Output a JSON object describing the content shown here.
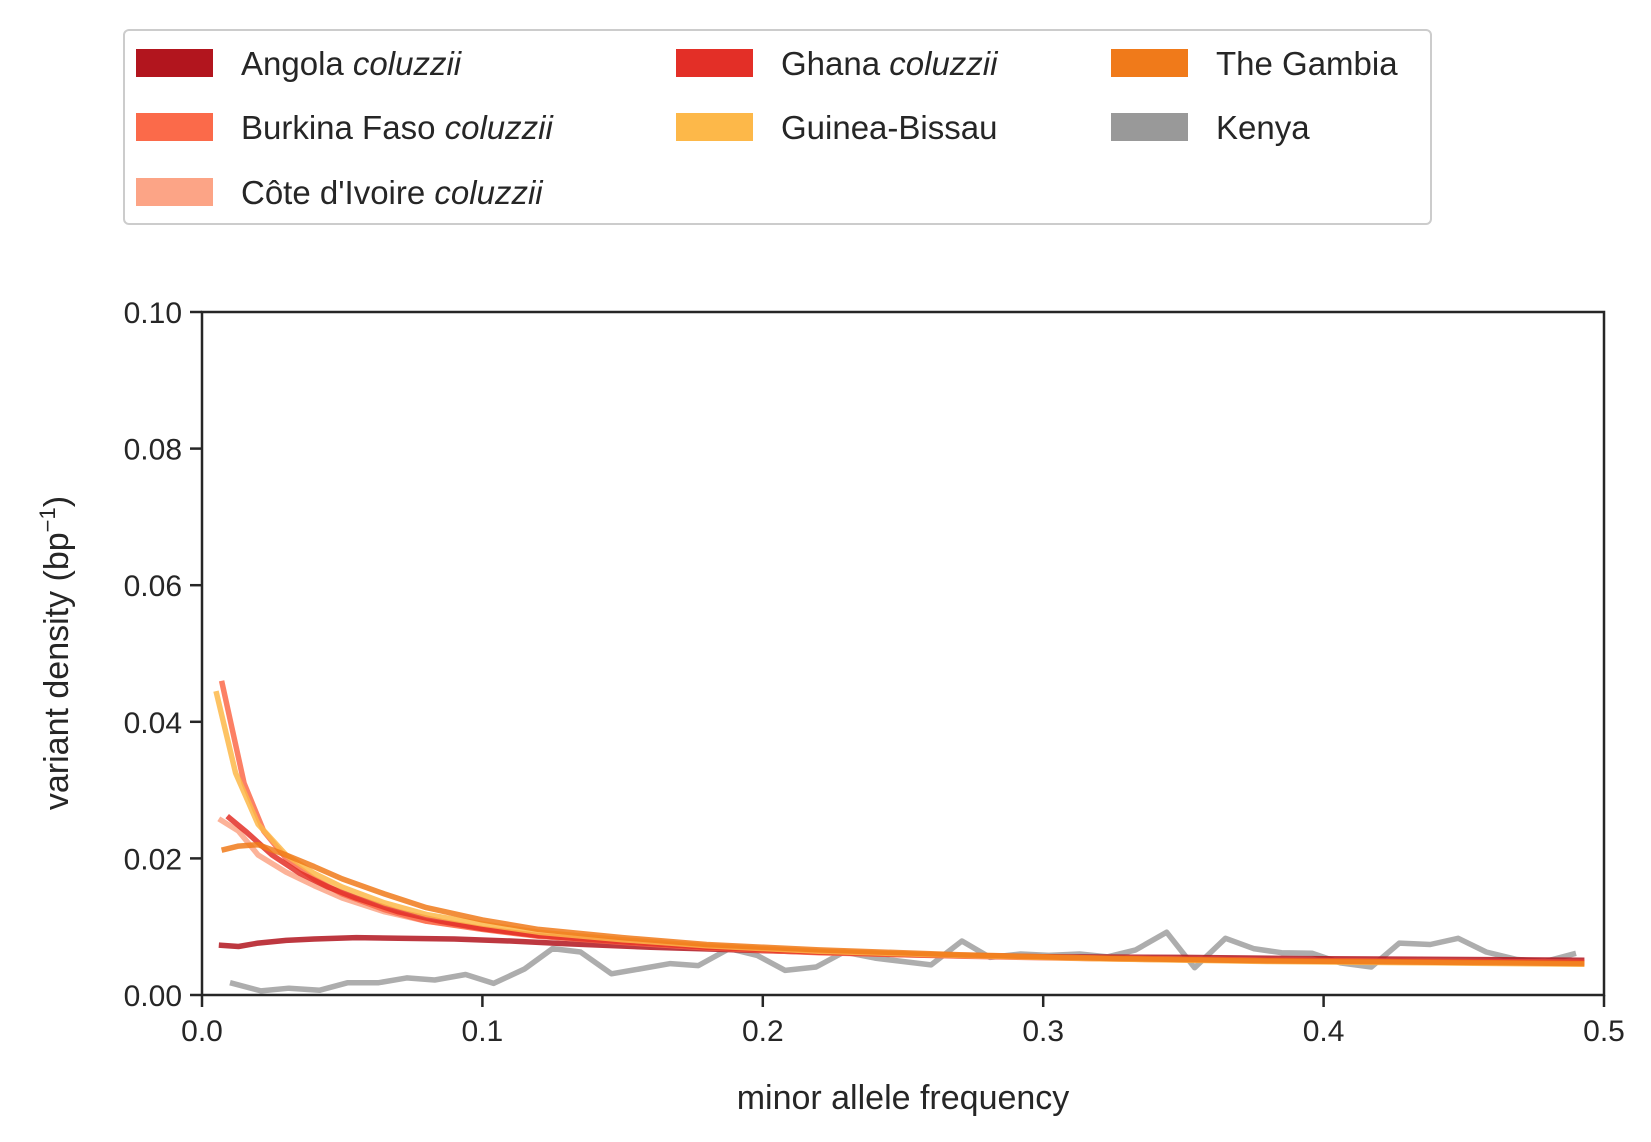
{
  "chart_data": {
    "type": "line",
    "title": "",
    "xlabel": "minor allele frequency",
    "ylabel": "variant density (bp",
    "ylabel_sup": "−1",
    "ylabel_close": ")",
    "xlim": [
      0,
      0.5
    ],
    "ylim": [
      0,
      0.1
    ],
    "xticks": [
      0.0,
      0.1,
      0.2,
      0.3,
      0.4,
      0.5
    ],
    "xtick_labels": [
      "0.0",
      "0.1",
      "0.2",
      "0.3",
      "0.4",
      "0.5"
    ],
    "yticks": [
      0.0,
      0.02,
      0.04,
      0.06,
      0.08,
      0.1
    ],
    "ytick_labels": [
      "0.00",
      "0.02",
      "0.04",
      "0.06",
      "0.08",
      "0.10"
    ],
    "grid": false,
    "legend_position": "top, above plot",
    "series": [
      {
        "name": "Angola",
        "name_italic": "coluzzii",
        "color": "#b2151e",
        "points": [
          [
            0.006,
            0.0073
          ],
          [
            0.013,
            0.0071
          ],
          [
            0.02,
            0.0076
          ],
          [
            0.03,
            0.008
          ],
          [
            0.04,
            0.0082
          ],
          [
            0.055,
            0.0084
          ],
          [
            0.07,
            0.0083
          ],
          [
            0.09,
            0.0082
          ],
          [
            0.11,
            0.0079
          ],
          [
            0.13,
            0.0075
          ],
          [
            0.16,
            0.007
          ],
          [
            0.2,
            0.0065
          ],
          [
            0.25,
            0.0059
          ],
          [
            0.3,
            0.0056
          ],
          [
            0.35,
            0.0055
          ],
          [
            0.4,
            0.0053
          ],
          [
            0.45,
            0.0052
          ],
          [
            0.493,
            0.0051
          ]
        ]
      },
      {
        "name": "Burkina Faso",
        "name_italic": "coluzzii",
        "color": "#fb6a4a",
        "points": [
          [
            0.007,
            0.046
          ],
          [
            0.015,
            0.031
          ],
          [
            0.022,
            0.024
          ],
          [
            0.03,
            0.02
          ],
          [
            0.04,
            0.017
          ],
          [
            0.05,
            0.0148
          ],
          [
            0.065,
            0.0125
          ],
          [
            0.08,
            0.0108
          ],
          [
            0.1,
            0.0096
          ],
          [
            0.12,
            0.0086
          ],
          [
            0.15,
            0.0077
          ],
          [
            0.18,
            0.0069
          ],
          [
            0.22,
            0.0062
          ],
          [
            0.27,
            0.0057
          ],
          [
            0.32,
            0.0053
          ],
          [
            0.38,
            0.005
          ],
          [
            0.44,
            0.0048
          ],
          [
            0.493,
            0.0047
          ]
        ]
      },
      {
        "name": "Côte d'Ivoire",
        "name_italic": "coluzzii",
        "color": "#fca486",
        "points": [
          [
            0.006,
            0.0258
          ],
          [
            0.013,
            0.024
          ],
          [
            0.02,
            0.0205
          ],
          [
            0.03,
            0.018
          ],
          [
            0.04,
            0.016
          ],
          [
            0.05,
            0.0142
          ],
          [
            0.065,
            0.0122
          ],
          [
            0.08,
            0.0108
          ],
          [
            0.1,
            0.0097
          ],
          [
            0.12,
            0.0087
          ],
          [
            0.15,
            0.0078
          ],
          [
            0.18,
            0.007
          ],
          [
            0.22,
            0.0063
          ],
          [
            0.27,
            0.0058
          ],
          [
            0.32,
            0.0054
          ],
          [
            0.38,
            0.0051
          ],
          [
            0.44,
            0.0049
          ],
          [
            0.493,
            0.0048
          ]
        ]
      },
      {
        "name": "Ghana",
        "name_italic": "coluzzii",
        "color": "#e32f27",
        "points": [
          [
            0.009,
            0.0262
          ],
          [
            0.016,
            0.0238
          ],
          [
            0.025,
            0.0205
          ],
          [
            0.035,
            0.0178
          ],
          [
            0.045,
            0.0158
          ],
          [
            0.055,
            0.0142
          ],
          [
            0.07,
            0.0122
          ],
          [
            0.085,
            0.0108
          ],
          [
            0.1,
            0.0097
          ],
          [
            0.12,
            0.0087
          ],
          [
            0.15,
            0.0078
          ],
          [
            0.18,
            0.007
          ],
          [
            0.22,
            0.0063
          ],
          [
            0.27,
            0.0058
          ],
          [
            0.32,
            0.0054
          ],
          [
            0.38,
            0.0051
          ],
          [
            0.44,
            0.0049
          ],
          [
            0.493,
            0.0048
          ]
        ]
      },
      {
        "name": "Guinea-Bissau",
        "name_italic": "",
        "color": "#fdb849",
        "points": [
          [
            0.005,
            0.0445
          ],
          [
            0.012,
            0.0325
          ],
          [
            0.02,
            0.025
          ],
          [
            0.03,
            0.0205
          ],
          [
            0.04,
            0.0178
          ],
          [
            0.05,
            0.0158
          ],
          [
            0.065,
            0.0135
          ],
          [
            0.08,
            0.0118
          ],
          [
            0.1,
            0.0104
          ],
          [
            0.12,
            0.0092
          ],
          [
            0.15,
            0.0081
          ],
          [
            0.18,
            0.0072
          ],
          [
            0.22,
            0.0064
          ],
          [
            0.27,
            0.0058
          ],
          [
            0.32,
            0.0053
          ],
          [
            0.38,
            0.0049
          ],
          [
            0.44,
            0.0047
          ],
          [
            0.493,
            0.0045
          ]
        ]
      },
      {
        "name": "The Gambia",
        "name_italic": "",
        "color": "#f07a1a",
        "points": [
          [
            0.007,
            0.0212
          ],
          [
            0.013,
            0.0218
          ],
          [
            0.02,
            0.022
          ],
          [
            0.03,
            0.0205
          ],
          [
            0.04,
            0.0188
          ],
          [
            0.05,
            0.017
          ],
          [
            0.065,
            0.0148
          ],
          [
            0.08,
            0.0128
          ],
          [
            0.1,
            0.011
          ],
          [
            0.12,
            0.0096
          ],
          [
            0.15,
            0.0084
          ],
          [
            0.18,
            0.0074
          ],
          [
            0.22,
            0.0066
          ],
          [
            0.27,
            0.0059
          ],
          [
            0.32,
            0.0054
          ],
          [
            0.38,
            0.005
          ],
          [
            0.44,
            0.0048
          ],
          [
            0.493,
            0.0046
          ]
        ]
      },
      {
        "name": "Kenya",
        "name_italic": "",
        "color": "#999999",
        "points": [
          [
            0.01,
            0.0018
          ],
          [
            0.021,
            0.0006
          ],
          [
            0.031,
            0.001
          ],
          [
            0.042,
            0.0007
          ],
          [
            0.052,
            0.0018
          ],
          [
            0.063,
            0.0018
          ],
          [
            0.073,
            0.0025
          ],
          [
            0.083,
            0.0022
          ],
          [
            0.094,
            0.003
          ],
          [
            0.104,
            0.0017
          ],
          [
            0.115,
            0.0038
          ],
          [
            0.125,
            0.0068
          ],
          [
            0.135,
            0.0063
          ],
          [
            0.146,
            0.0031
          ],
          [
            0.156,
            0.0038
          ],
          [
            0.167,
            0.0046
          ],
          [
            0.177,
            0.0043
          ],
          [
            0.188,
            0.0068
          ],
          [
            0.198,
            0.0058
          ],
          [
            0.208,
            0.0036
          ],
          [
            0.219,
            0.0041
          ],
          [
            0.229,
            0.0063
          ],
          [
            0.24,
            0.0054
          ],
          [
            0.25,
            0.0049
          ],
          [
            0.26,
            0.0044
          ],
          [
            0.271,
            0.0079
          ],
          [
            0.281,
            0.0055
          ],
          [
            0.292,
            0.006
          ],
          [
            0.302,
            0.0058
          ],
          [
            0.313,
            0.006
          ],
          [
            0.323,
            0.0056
          ],
          [
            0.333,
            0.0066
          ],
          [
            0.344,
            0.0092
          ],
          [
            0.354,
            0.004
          ],
          [
            0.365,
            0.0083
          ],
          [
            0.375,
            0.0068
          ],
          [
            0.385,
            0.0062
          ],
          [
            0.396,
            0.0061
          ],
          [
            0.406,
            0.0047
          ],
          [
            0.417,
            0.0041
          ],
          [
            0.427,
            0.0076
          ],
          [
            0.438,
            0.0074
          ],
          [
            0.448,
            0.0083
          ],
          [
            0.458,
            0.0063
          ],
          [
            0.469,
            0.0052
          ],
          [
            0.479,
            0.0049
          ],
          [
            0.49,
            0.0061
          ]
        ]
      }
    ]
  }
}
